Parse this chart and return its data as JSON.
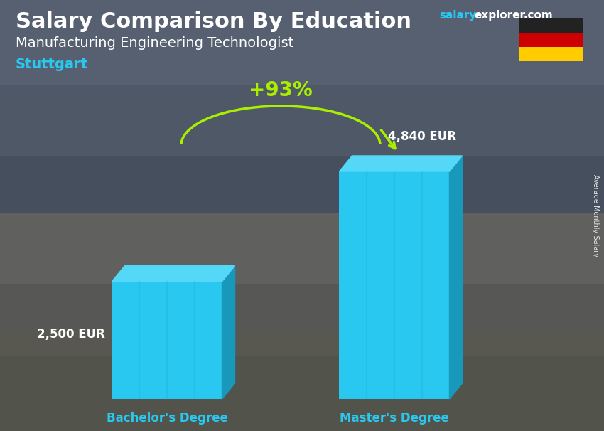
{
  "title_main": "Salary Comparison By Education",
  "title_sub": "Manufacturing Engineering Technologist",
  "title_city": "Stuttgart",
  "salary_word": "salary",
  "explorer_word": "explorer.com",
  "ylabel_rotated": "Average Monthly Salary",
  "categories": [
    "Bachelor's Degree",
    "Master's Degree"
  ],
  "values": [
    2500,
    4840
  ],
  "value_labels": [
    "2,500 EUR",
    "4,840 EUR"
  ],
  "pct_change": "+93%",
  "bar_color_face": "#29C8F0",
  "bar_color_top": "#55D8F8",
  "bar_color_side": "#1899BB",
  "bar_color_right_dark": "#1080A0",
  "bg_gradient_top": "#6B7B8A",
  "bg_gradient_bottom": "#8A8A7A",
  "overlay_color": "#1A1A2A",
  "overlay_alpha": 0.45,
  "text_color_white": "#FFFFFF",
  "text_color_cyan": "#29C8F0",
  "text_color_green": "#AAEE00",
  "flag_black": "#222222",
  "flag_red": "#CC0000",
  "flag_gold": "#FFCC00",
  "title_fontsize": 22,
  "sub_fontsize": 14,
  "city_fontsize": 14,
  "val_label_fontsize": 12,
  "cat_fontsize": 12,
  "pct_fontsize": 20
}
